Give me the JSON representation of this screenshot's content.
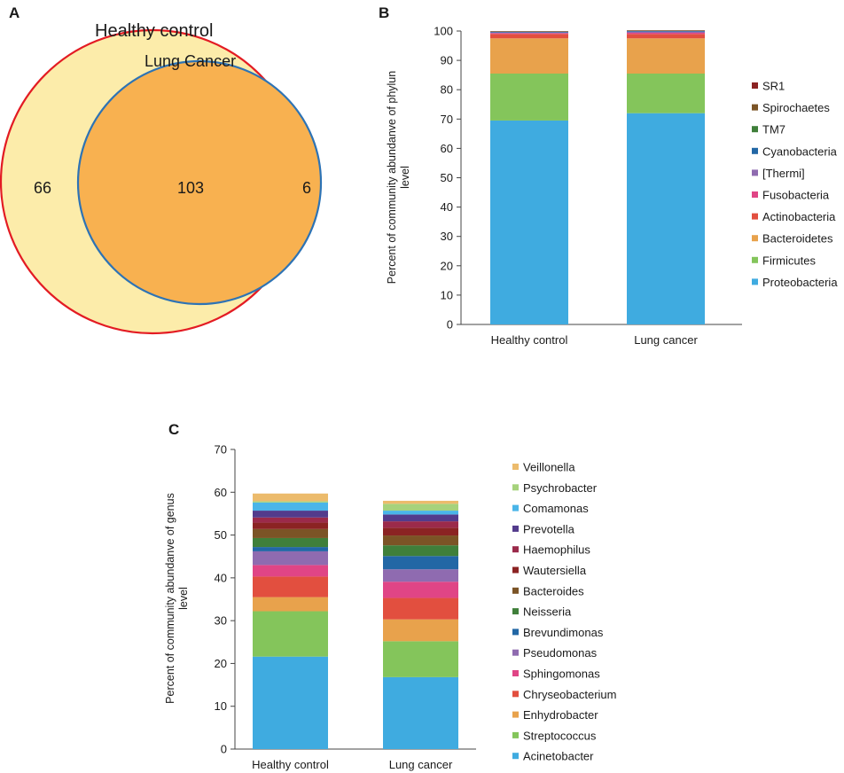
{
  "panels": {
    "a": {
      "letter": "A"
    },
    "b": {
      "letter": "B"
    },
    "c": {
      "letter": "C"
    }
  },
  "venn": {
    "set1_label": "Healthy control",
    "set2_label": "Lung Cancer",
    "only_set1": "66",
    "shared": "103",
    "only_set2": "6",
    "colors": {
      "set1_fill": "#fcecaa",
      "set1_stroke": "#e31b23",
      "set2_fill": "#f8b150",
      "set2_stroke": "#2d73b5",
      "label1": "#e31b23",
      "label2": "#2d73b5"
    }
  },
  "chart_data": [
    {
      "type": "bar",
      "stacked": true,
      "panel": "B",
      "categories": [
        "Healthy control",
        "Lung cancer"
      ],
      "ylabel": "Percent of community abundanve of phylun level",
      "ylim": [
        0,
        100
      ],
      "yticks": [
        0,
        10,
        20,
        30,
        40,
        50,
        60,
        70,
        80,
        90,
        100
      ],
      "legend": "right",
      "series": [
        {
          "name": "Proteobacteria",
          "color": "#3fabe0",
          "values": [
            69.5,
            72
          ]
        },
        {
          "name": "Firmicutes",
          "color": "#84c55b",
          "values": [
            16,
            13.5
          ]
        },
        {
          "name": "Bacteroidetes",
          "color": "#e8a24c",
          "values": [
            12,
            12
          ]
        },
        {
          "name": "Actinobacteria",
          "color": "#e24f3f",
          "values": [
            1.5,
            1.5
          ]
        },
        {
          "name": "Fusobacteria",
          "color": "#e04586",
          "values": [
            0.3,
            0.4
          ]
        },
        {
          "name": "[Thermi]",
          "color": "#8f6bb0",
          "values": [
            0.2,
            0.4
          ]
        },
        {
          "name": "Cyanobacteria",
          "color": "#2267a5",
          "values": [
            0.2,
            0.2
          ]
        },
        {
          "name": "TM7",
          "color": "#3f7f3a",
          "values": [
            0.1,
            0.1
          ]
        },
        {
          "name": "Spirochaetes",
          "color": "#7b5426",
          "values": [
            0.1,
            0.1
          ]
        },
        {
          "name": "SR1",
          "color": "#8b2323",
          "values": [
            0.1,
            0.1
          ]
        }
      ]
    },
    {
      "type": "bar",
      "stacked": true,
      "panel": "C",
      "categories": [
        "Healthy control",
        "Lung cancer"
      ],
      "ylabel": "Percent of community abundanve of genus level",
      "ylim": [
        0,
        70
      ],
      "yticks": [
        0,
        10,
        20,
        30,
        40,
        50,
        60,
        70
      ],
      "legend": "right",
      "series": [
        {
          "name": "Acinetobacter",
          "color": "#3fabe0",
          "values": [
            21.6,
            16.8
          ]
        },
        {
          "name": "Streptococcus",
          "color": "#84c55b",
          "values": [
            10.6,
            8.4
          ]
        },
        {
          "name": "Enhydrobacter",
          "color": "#e8a24c",
          "values": [
            3.3,
            5.1
          ]
        },
        {
          "name": "Chryseobacterium",
          "color": "#e24f3f",
          "values": [
            4.8,
            5.0
          ]
        },
        {
          "name": "Sphingomonas",
          "color": "#e04586",
          "values": [
            2.7,
            3.8
          ]
        },
        {
          "name": "Pseudomonas",
          "color": "#8f6bb0",
          "values": [
            3.2,
            2.9
          ]
        },
        {
          "name": "Brevundimonas",
          "color": "#2267a5",
          "values": [
            1.0,
            3.1
          ]
        },
        {
          "name": "Neisseria",
          "color": "#3f7f3a",
          "values": [
            2.1,
            2.5
          ]
        },
        {
          "name": "Bacteroides",
          "color": "#7b5426",
          "values": [
            2.1,
            2.3
          ]
        },
        {
          "name": "Wautersiella",
          "color": "#8b2323",
          "values": [
            1.5,
            1.8
          ]
        },
        {
          "name": "Haemophilus",
          "color": "#9b2a4a",
          "values": [
            1.2,
            1.5
          ]
        },
        {
          "name": "Prevotella",
          "color": "#533b8c",
          "values": [
            1.6,
            1.6
          ]
        },
        {
          "name": "Comamonas",
          "color": "#4ab5e8",
          "values": [
            1.9,
            0.9
          ]
        },
        {
          "name": "Psychrobacter",
          "color": "#a6d27c",
          "values": [
            0.3,
            1.6
          ]
        },
        {
          "name": "Veillonella",
          "color": "#ecbb6c",
          "values": [
            1.8,
            0.7
          ]
        }
      ]
    }
  ]
}
